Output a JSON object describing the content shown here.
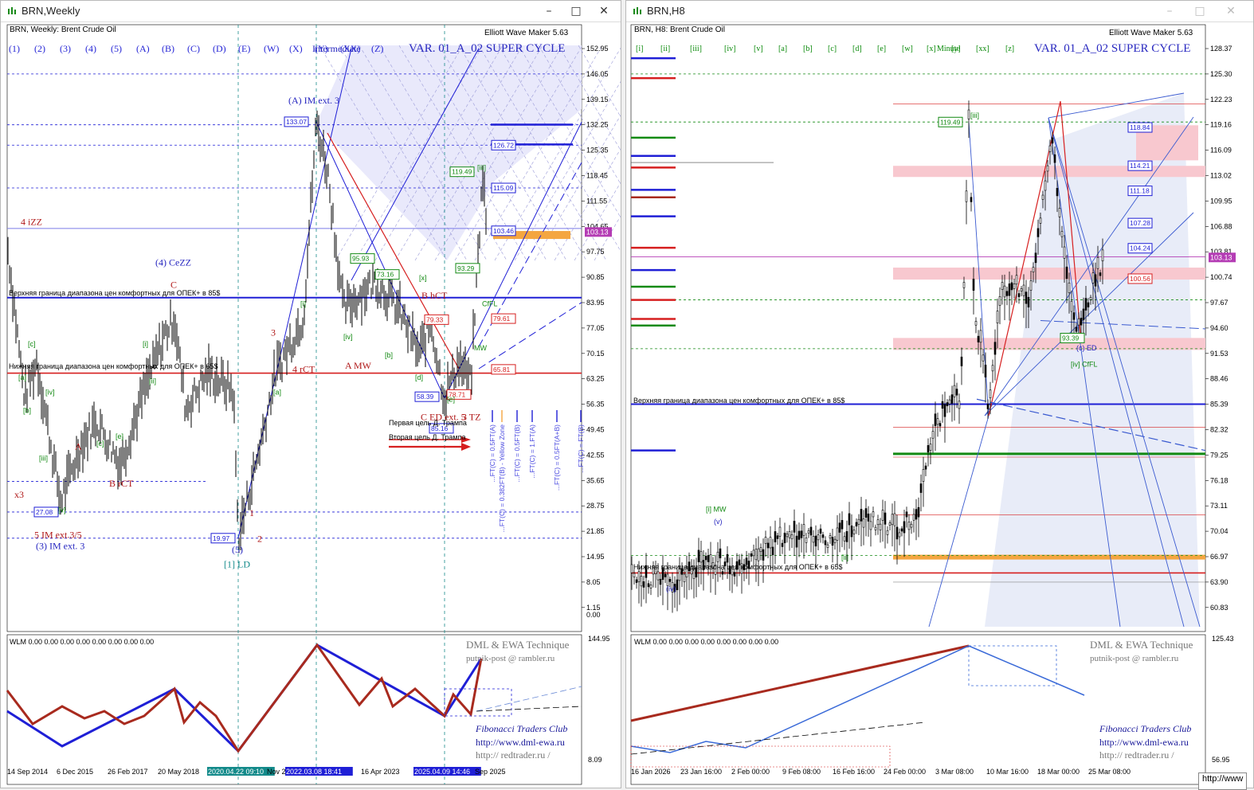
{
  "left_window": {
    "title": "BRN,Weekly",
    "symbol_line": "BRN, Weekly:  Brent Crude Oil",
    "ewm_label": "Elliott Wave Maker 5.63",
    "variant_label": "VAR. 01_A_02 SUPER CYCLE",
    "degree_buttons": [
      "(1)",
      "(2)",
      "(3)",
      "(4)",
      "(5)",
      "(A)",
      "(B)",
      "(C)",
      "(D)",
      "(E)",
      "(W)",
      "(X)",
      "(Y)",
      "(XX)",
      "(Z)",
      "Intermediate"
    ],
    "upper_band_text": "Верхняя граница диапазона цен комфортных для ОПЕК+ в 85$",
    "lower_band_text": "Нижняя граница диапазона цен комфортных для ОПЕК+ в 65$",
    "first_target_text": "Первая цель Д. Трампа",
    "second_target_text": "Вторая цель Д. Трампа",
    "price_ticks": [
      "152.95",
      "146.05",
      "139.15",
      "132.25",
      "125.35",
      "118.45",
      "111.55",
      "104.65",
      "97.75",
      "90.85",
      "83.95",
      "77.05",
      "70.15",
      "63.25",
      "56.35",
      "49.45",
      "42.55",
      "35.65",
      "28.75",
      "21.85",
      "14.95",
      "8.05",
      "1.15"
    ],
    "price_tag": "103.13",
    "zero_tag": "0.00",
    "time_labels": [
      "14 Sep 2014",
      "6 Dec 2015",
      "26 Feb 2017",
      "20 May 2018",
      "2020.04.22 09:10",
      "Nov 2",
      "2022.03.08 18:41",
      "16 Apr 2023",
      "2025.04.09 14:46",
      "Sep 2025"
    ],
    "price_boxes": [
      "133.07",
      "126.72",
      "119.49",
      "115.09",
      "103.46",
      "95.93",
      "93.29",
      "79.61",
      "65.81",
      "58.39",
      "27.08",
      "19.97",
      "73.16",
      "79.33",
      "85.16",
      "78.71"
    ],
    "wave_labels_red": [
      "4 iZZ",
      "x3",
      "A",
      "C",
      "3",
      "4 rCT",
      "A MW",
      "B rCT",
      "1",
      "2",
      "5 IM ext.3/5",
      "C ED ext. 5",
      "B hCT",
      "3 TZ"
    ],
    "wave_labels_blue": [
      "(A) IM ext. 3",
      "(4) CeZZ",
      "(3) IM ext. 3",
      "(5)",
      "[1] LD"
    ],
    "wave_labels_green": [
      "[c]",
      "[a]",
      "[b]",
      "[iv]",
      "[iii]",
      "[v]",
      "[i]",
      "[ii]",
      "[d]",
      "[e]",
      "[x]",
      "[iv]",
      "[i]",
      "[b]",
      "[a]",
      "[c]",
      "[e]",
      "CfFL",
      "MW",
      "[iii]"
    ],
    "fib_vertical": [
      "...FT(C) = 0.5FT(A)",
      "...FT(C) = 0.382FT(B) - Yellow Zone",
      "...FT(C) = 0.5FT(B)",
      "...FT(C) = 1.FT(A)",
      "...FT(C) = 0.5FT(A+B)",
      "...FT(C) = FT(B)"
    ],
    "wlm_label": "WLM 0.00 0.00 0.00 0.00 0.00 0.00 0.00 0.00",
    "wlm_ticks": [
      "144.95",
      "8.09"
    ],
    "wm1": "DML & EWA Technique",
    "wm2": "putnik-post @ rambler.ru",
    "wm3": "Fibonacci     Traders     Club",
    "wm4": "http://www.dml-ewa.ru",
    "wm5": "http://  redtrader.ru  /"
  },
  "right_window": {
    "title": "BRN,H8",
    "symbol_line": "BRN, H8:  Brent Crude Oil",
    "ewm_label": "Elliott Wave Maker 5.63",
    "variant_label": "VAR. 01_A_02 SUPER CYCLE",
    "degree_buttons": [
      "[i]",
      "[ii]",
      "[iii]",
      "[iv]",
      "[v]",
      "[a]",
      "[b]",
      "[c]",
      "[d]",
      "[e]",
      "[w]",
      "[x]",
      "[y]",
      "[xx]",
      "[z]",
      "Minute"
    ],
    "upper_band_text": "Верхняя граница диапазона цен комфортных для ОПЕК+ в 85$",
    "lower_band_text": "Нижняя граница диапазона цен комфортных для ОПЕК+ в 65$",
    "price_ticks": [
      "128.37",
      "125.30",
      "122.23",
      "119.16",
      "116.09",
      "113.02",
      "109.95",
      "106.88",
      "103.81",
      "100.74",
      "97.67",
      "94.60",
      "91.53",
      "88.46",
      "85.39",
      "82.32",
      "79.25",
      "76.18",
      "73.11",
      "70.04",
      "66.97",
      "63.90",
      "60.83"
    ],
    "price_tag": "103.13",
    "time_labels": [
      "16 Jan 2026",
      "23 Jan 16:00",
      "2 Feb 00:00",
      "9 Feb 08:00",
      "16 Feb 16:00",
      "24 Feb 00:00",
      "3 Mar 08:00",
      "10 Mar 16:00",
      "18 Mar 00:00",
      "25 Mar 08:00"
    ],
    "price_boxes": [
      "119.49",
      "93.39",
      "118.84",
      "114.21",
      "111.18",
      "107.28",
      "104.24",
      "100.56"
    ],
    "wave_labels": [
      "[iii]",
      "(c) ED",
      "[iv] CfFL",
      "[i] MW",
      "(v)",
      "(iv)",
      "[ii]"
    ],
    "wlm_label": "WLM 0.00 0.00 0.00 0.00 0.00 0.00 0.00 0.00",
    "wlm_ticks": [
      "125.43",
      "56.95"
    ],
    "wm1": "DML & EWA Technique",
    "wm2": "putnik-post @ rambler.ru",
    "wm3": "Fibonacci     Traders     Club",
    "wm4": "http://www.dml-ewa.ru",
    "wm5": "http://  redtrader.ru  /"
  },
  "status_tip": "http://www",
  "colors": {
    "blue": "#1f1fd6",
    "red": "#d61f1f",
    "green": "#138a13",
    "orange": "#f4a640",
    "pink": "#f8c8cf",
    "magenta": "#b43cb4",
    "darkred": "#a82a1e"
  },
  "chart_data": [
    {
      "type": "line",
      "title": "BRN, Weekly: Brent Crude Oil",
      "x": [
        "2014-09",
        "2015-12",
        "2017-02",
        "2018-05",
        "2020-04",
        "2022-03",
        "2023-04",
        "2025-04",
        "2025-09"
      ],
      "series": [
        {
          "name": "BRN",
          "values": [
            100,
            36,
            55,
            80,
            20,
            133,
            78,
            58,
            103.13
          ]
        }
      ],
      "ylim": [
        1.15,
        152.95
      ]
    },
    {
      "type": "line",
      "title": "BRN, H8: Brent Crude Oil",
      "x": [
        "2026-01-16",
        "2026-01-23",
        "2026-02-02",
        "2026-02-09",
        "2026-02-16",
        "2026-02-24",
        "2026-03-03",
        "2026-03-10",
        "2026-03-18",
        "2026-03-25"
      ],
      "series": [
        {
          "name": "BRN",
          "values": [
            64,
            68,
            67,
            69,
            70,
            71,
            82,
            119.49,
            93.39,
            103.13
          ]
        }
      ],
      "ylim": [
        60.83,
        128.37
      ]
    }
  ]
}
